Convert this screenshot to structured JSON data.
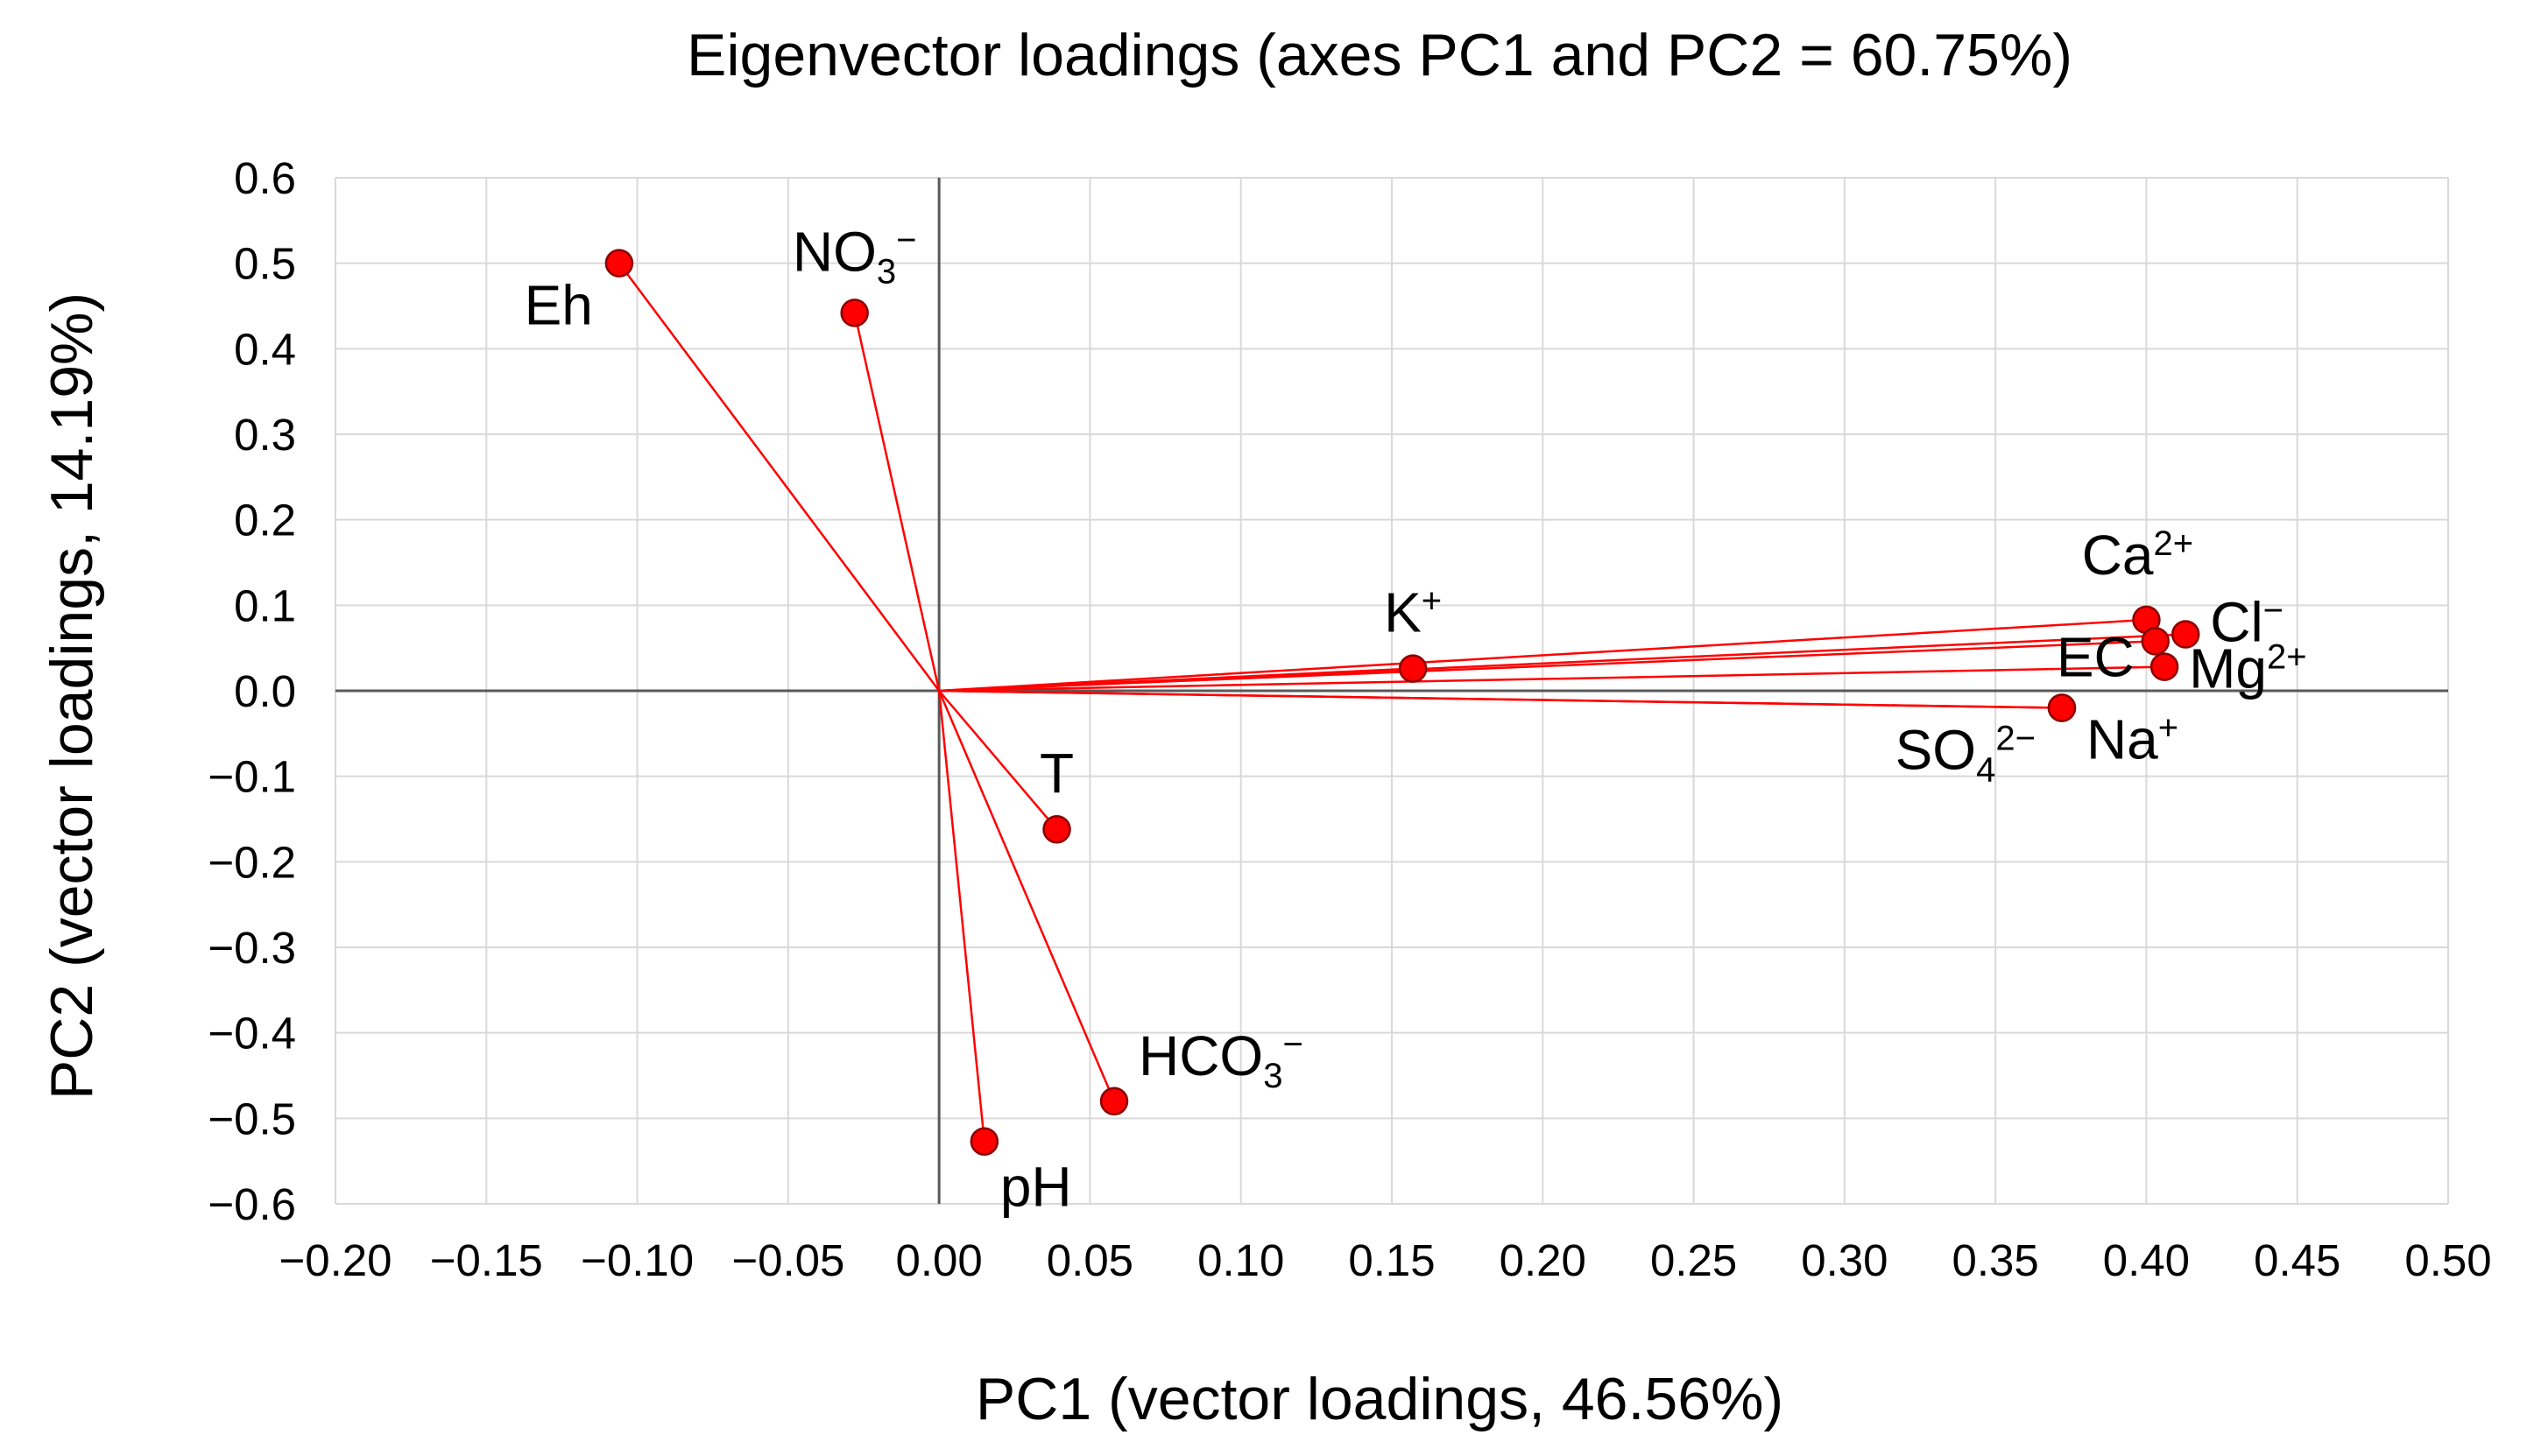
{
  "chart_data": {
    "type": "scatter",
    "subtype": "biplot-loading-vectors",
    "title": "Eigenvector loadings (axes PC1 and PC2 = 60.75%)",
    "xlabel": "PC1 (vector loadings, 46.56%)",
    "ylabel": "PC2 (vector loadings, 14.19%)",
    "xlim": [
      -0.2,
      0.5
    ],
    "ylim": [
      -0.6,
      0.6
    ],
    "grid": true,
    "vectors_from_origin": true,
    "x_ticks": [
      -0.2,
      -0.15,
      -0.1,
      -0.05,
      0,
      0.05,
      0.1,
      0.15,
      0.2,
      0.25,
      0.3,
      0.35,
      0.4,
      0.45,
      0.5
    ],
    "x_tick_labels": [
      "−0.20",
      "−0.15",
      "−0.10",
      "−0.05",
      "0.00",
      "0.05",
      "0.10",
      "0.15",
      "0.20",
      "0.25",
      "0.30",
      "0.35",
      "0.40",
      "0.45",
      "0.50"
    ],
    "y_ticks": [
      0.6,
      0.5,
      0.4,
      0.3,
      0.2,
      0.1,
      0,
      -0.1,
      -0.2,
      -0.3,
      -0.4,
      -0.5,
      -0.6
    ],
    "y_tick_labels": [
      "0.6",
      "0.5",
      "0.4",
      "0.3",
      "0.2",
      "0.1",
      "0.0",
      "−0.1",
      "−0.2",
      "−0.3",
      "−0.4",
      "−0.5",
      "−0.6"
    ],
    "points": [
      {
        "label": "Eh",
        "base": "Eh",
        "script": "",
        "charge": "",
        "x": -0.106,
        "y": 0.5,
        "label_anchor": "below-left"
      },
      {
        "label": "NO3−",
        "base": "NO",
        "script": "3",
        "charge": "−",
        "x": -0.028,
        "y": 0.442,
        "label_anchor": "above"
      },
      {
        "label": "K+",
        "base": "K",
        "script": "",
        "charge": "+",
        "x": 0.157,
        "y": 0.026,
        "label_anchor": "above"
      },
      {
        "label": "T",
        "base": "T",
        "script": "",
        "charge": "",
        "x": 0.039,
        "y": -0.162,
        "label_anchor": "above"
      },
      {
        "label": "HCO3−",
        "base": "HCO",
        "script": "3",
        "charge": "−",
        "x": 0.058,
        "y": -0.48,
        "label_anchor": "above-right"
      },
      {
        "label": "pH",
        "base": "pH",
        "script": "",
        "charge": "",
        "x": 0.015,
        "y": -0.527,
        "label_anchor": "below-right"
      },
      {
        "label": "Ca2+",
        "base": "Ca",
        "script": "",
        "charge": "2+",
        "x": 0.4,
        "y": 0.083,
        "label_anchor": "above"
      },
      {
        "label": "EC",
        "base": "EC",
        "script": "",
        "charge": "",
        "x": 0.403,
        "y": 0.058,
        "label_anchor": "left"
      },
      {
        "label": "Cl−",
        "base": "Cl",
        "script": "",
        "charge": "−",
        "x": 0.413,
        "y": 0.066,
        "label_anchor": "right"
      },
      {
        "label": "Mg2+",
        "base": "Mg",
        "script": "",
        "charge": "2+",
        "x": 0.406,
        "y": 0.028,
        "label_anchor": "right"
      },
      {
        "label": "Na+",
        "base": "Na",
        "script": "",
        "charge": "+",
        "x": 0.372,
        "y": -0.02,
        "label_anchor": "right"
      },
      {
        "label": "SO42−",
        "base": "SO",
        "script": "4",
        "charge": "2−",
        "x": 0.372,
        "y": -0.02,
        "label_anchor": "below-left"
      }
    ],
    "colors": {
      "vector": "#ff0000",
      "marker_fill": "#ff0000",
      "marker_stroke": "#8b0000",
      "grid": "#d9d9d9",
      "axis": "#595959"
    }
  }
}
